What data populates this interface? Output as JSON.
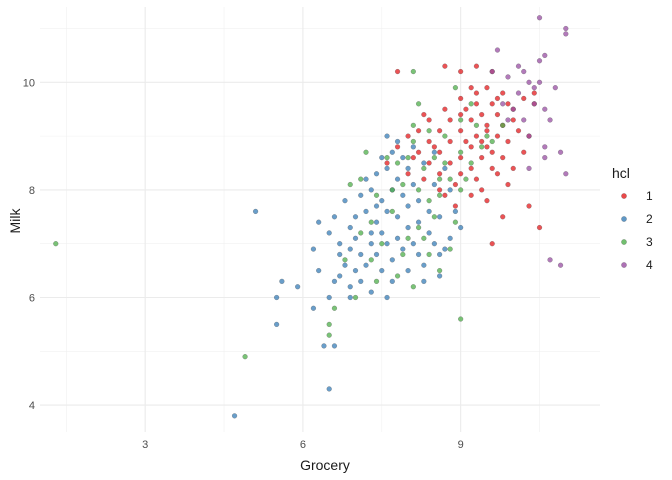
{
  "chart_data": {
    "type": "scatter",
    "title": "",
    "xlabel": "Grocery",
    "ylabel": "Milk",
    "xlim": [
      1.0,
      11.65
    ],
    "ylim": [
      3.5,
      11.4
    ],
    "x_ticks": [
      "3",
      "6",
      "9"
    ],
    "y_ticks": [
      "4",
      "6",
      "8",
      "10"
    ],
    "grid": true,
    "legend": {
      "title": "hcl",
      "position": "right"
    },
    "series": [
      {
        "name": "1",
        "color": "#E41A1C",
        "points": [
          [
            7.8,
            10.2
          ],
          [
            8.7,
            10.3
          ],
          [
            9.0,
            10.2
          ],
          [
            9.3,
            10.3
          ],
          [
            9.6,
            10.2
          ],
          [
            9.2,
            9.9
          ],
          [
            9.5,
            9.9
          ],
          [
            9.8,
            9.8
          ],
          [
            9.0,
            9.7
          ],
          [
            9.3,
            9.6
          ],
          [
            9.6,
            9.6
          ],
          [
            9.9,
            9.6
          ],
          [
            10.2,
            9.7
          ],
          [
            10.4,
            9.6
          ],
          [
            8.7,
            9.5
          ],
          [
            9.1,
            9.5
          ],
          [
            9.4,
            9.4
          ],
          [
            9.7,
            9.4
          ],
          [
            10.0,
            9.5
          ],
          [
            8.4,
            9.3
          ],
          [
            8.8,
            9.3
          ],
          [
            9.2,
            9.3
          ],
          [
            9.5,
            9.2
          ],
          [
            9.8,
            9.2
          ],
          [
            8.2,
            9.1
          ],
          [
            8.6,
            9.1
          ],
          [
            9.0,
            9.1
          ],
          [
            9.3,
            9.0
          ],
          [
            9.7,
            9.0
          ],
          [
            10.1,
            9.1
          ],
          [
            8.0,
            9.0
          ],
          [
            8.4,
            8.9
          ],
          [
            8.8,
            8.9
          ],
          [
            9.2,
            8.8
          ],
          [
            9.5,
            8.8
          ],
          [
            9.9,
            8.9
          ],
          [
            7.8,
            8.8
          ],
          [
            8.2,
            8.7
          ],
          [
            8.6,
            8.7
          ],
          [
            9.0,
            8.6
          ],
          [
            9.4,
            8.6
          ],
          [
            9.8,
            8.6
          ],
          [
            10.2,
            8.7
          ],
          [
            8.4,
            8.5
          ],
          [
            8.8,
            8.5
          ],
          [
            9.2,
            8.4
          ],
          [
            9.6,
            8.4
          ],
          [
            10.0,
            8.4
          ],
          [
            8.6,
            8.3
          ],
          [
            9.0,
            8.3
          ],
          [
            9.3,
            8.2
          ],
          [
            9.7,
            8.3
          ],
          [
            8.9,
            8.1
          ],
          [
            9.4,
            8.0
          ],
          [
            8.7,
            7.9
          ],
          [
            9.2,
            7.9
          ],
          [
            9.5,
            7.8
          ],
          [
            8.9,
            7.7
          ],
          [
            9.8,
            7.5
          ],
          [
            10.3,
            7.7
          ],
          [
            10.5,
            7.3
          ],
          [
            9.6,
            7.0
          ],
          [
            8.1,
            8.6
          ],
          [
            8.5,
            8.8
          ],
          [
            9.1,
            8.9
          ],
          [
            9.5,
            9.1
          ],
          [
            10.0,
            9.3
          ],
          [
            10.4,
            9.8
          ],
          [
            8.3,
            8.2
          ],
          [
            9.9,
            8.1
          ],
          [
            7.6,
            8.5
          ],
          [
            8.0,
            8.3
          ],
          [
            9.3,
            9.8
          ],
          [
            9.6,
            8.7
          ],
          [
            10.3,
            9.0
          ],
          [
            8.6,
            8.0
          ],
          [
            9.0,
            9.4
          ],
          [
            9.7,
            9.7
          ],
          [
            8.3,
            9.4
          ],
          [
            9.4,
            8.9
          ]
        ]
      },
      {
        "name": "2",
        "color": "#377EB8",
        "points": [
          [
            4.7,
            3.8
          ],
          [
            6.5,
            4.3
          ],
          [
            5.5,
            5.5
          ],
          [
            6.4,
            5.1
          ],
          [
            6.6,
            5.1
          ],
          [
            5.5,
            6.0
          ],
          [
            5.6,
            6.3
          ],
          [
            5.9,
            6.2
          ],
          [
            6.2,
            5.8
          ],
          [
            6.3,
            6.5
          ],
          [
            6.5,
            6.0
          ],
          [
            6.6,
            6.3
          ],
          [
            6.7,
            6.4
          ],
          [
            6.8,
            6.6
          ],
          [
            6.9,
            6.2
          ],
          [
            7.0,
            6.5
          ],
          [
            6.7,
            6.8
          ],
          [
            6.9,
            6.9
          ],
          [
            7.1,
            6.8
          ],
          [
            7.2,
            6.6
          ],
          [
            7.3,
            7.0
          ],
          [
            7.4,
            6.8
          ],
          [
            7.5,
            7.2
          ],
          [
            7.6,
            7.0
          ],
          [
            7.7,
            6.7
          ],
          [
            7.8,
            7.1
          ],
          [
            7.9,
            6.9
          ],
          [
            8.0,
            7.3
          ],
          [
            8.1,
            7.0
          ],
          [
            8.2,
            6.8
          ],
          [
            8.3,
            6.6
          ],
          [
            8.4,
            7.2
          ],
          [
            8.5,
            7.0
          ],
          [
            8.6,
            6.8
          ],
          [
            8.7,
            6.9
          ],
          [
            8.8,
            7.1
          ],
          [
            6.9,
            7.3
          ],
          [
            7.0,
            7.5
          ],
          [
            7.2,
            7.6
          ],
          [
            7.4,
            7.4
          ],
          [
            7.6,
            7.6
          ],
          [
            7.8,
            7.5
          ],
          [
            8.0,
            7.7
          ],
          [
            8.2,
            7.4
          ],
          [
            8.4,
            7.6
          ],
          [
            6.8,
            7.8
          ],
          [
            7.1,
            7.9
          ],
          [
            7.3,
            8.0
          ],
          [
            7.5,
            7.8
          ],
          [
            7.7,
            8.0
          ],
          [
            7.9,
            7.9
          ],
          [
            8.1,
            8.1
          ],
          [
            7.2,
            8.2
          ],
          [
            7.4,
            8.3
          ],
          [
            7.6,
            8.4
          ],
          [
            7.8,
            8.2
          ],
          [
            8.0,
            8.4
          ],
          [
            7.5,
            8.6
          ],
          [
            7.7,
            8.7
          ],
          [
            7.9,
            8.6
          ],
          [
            8.1,
            8.8
          ],
          [
            7.6,
            9.0
          ],
          [
            7.8,
            8.9
          ],
          [
            8.3,
            8.5
          ],
          [
            8.5,
            8.7
          ],
          [
            8.7,
            8.4
          ],
          [
            5.1,
            7.6
          ],
          [
            6.2,
            6.9
          ],
          [
            6.5,
            7.2
          ],
          [
            6.7,
            7.0
          ],
          [
            7.0,
            7.1
          ],
          [
            7.3,
            7.2
          ],
          [
            7.5,
            6.5
          ],
          [
            7.7,
            6.3
          ],
          [
            8.0,
            6.5
          ],
          [
            8.3,
            6.3
          ],
          [
            8.6,
            6.4
          ],
          [
            6.9,
            6.0
          ],
          [
            7.1,
            6.3
          ],
          [
            7.3,
            6.1
          ],
          [
            7.6,
            6.0
          ],
          [
            8.2,
            7.8
          ],
          [
            8.6,
            7.5
          ],
          [
            8.9,
            7.6
          ],
          [
            9.0,
            7.3
          ],
          [
            6.6,
            7.5
          ],
          [
            6.3,
            7.4
          ],
          [
            7.4,
            7.7
          ],
          [
            8.5,
            8.1
          ],
          [
            8.8,
            8.0
          ]
        ]
      },
      {
        "name": "3",
        "color": "#4DAF4A",
        "points": [
          [
            1.3,
            7.0
          ],
          [
            4.9,
            4.9
          ],
          [
            6.5,
            5.5
          ],
          [
            6.6,
            5.8
          ],
          [
            7.0,
            6.0
          ],
          [
            7.4,
            6.3
          ],
          [
            7.8,
            6.4
          ],
          [
            8.1,
            6.2
          ],
          [
            8.4,
            6.8
          ],
          [
            8.6,
            6.5
          ],
          [
            8.8,
            6.9
          ],
          [
            9.0,
            5.6
          ],
          [
            6.9,
            8.1
          ],
          [
            7.1,
            8.2
          ],
          [
            7.4,
            7.9
          ],
          [
            7.7,
            8.0
          ],
          [
            7.9,
            8.1
          ],
          [
            8.2,
            8.0
          ],
          [
            8.4,
            7.8
          ],
          [
            8.6,
            7.9
          ],
          [
            8.8,
            8.2
          ],
          [
            9.0,
            8.0
          ],
          [
            7.6,
            8.6
          ],
          [
            7.8,
            8.5
          ],
          [
            8.0,
            8.6
          ],
          [
            8.3,
            8.4
          ],
          [
            8.5,
            8.6
          ],
          [
            8.7,
            8.5
          ],
          [
            9.0,
            8.7
          ],
          [
            9.2,
            8.5
          ],
          [
            9.4,
            8.8
          ],
          [
            9.6,
            8.9
          ],
          [
            8.1,
            9.2
          ],
          [
            8.4,
            9.1
          ],
          [
            8.7,
            9.0
          ],
          [
            9.0,
            9.3
          ],
          [
            9.3,
            9.2
          ],
          [
            8.2,
            9.6
          ],
          [
            8.9,
            9.9
          ],
          [
            9.8,
            9.2
          ],
          [
            8.1,
            10.2
          ],
          [
            7.3,
            7.4
          ],
          [
            7.7,
            7.6
          ],
          [
            8.2,
            7.3
          ],
          [
            8.5,
            7.5
          ],
          [
            7.1,
            7.2
          ],
          [
            7.5,
            7.0
          ],
          [
            8.0,
            7.1
          ],
          [
            8.3,
            7.1
          ],
          [
            8.9,
            7.4
          ],
          [
            7.3,
            6.7
          ],
          [
            7.9,
            6.8
          ],
          [
            6.8,
            6.7
          ],
          [
            6.5,
            5.3
          ],
          [
            7.2,
            8.7
          ],
          [
            8.1,
            8.9
          ],
          [
            8.6,
            8.2
          ],
          [
            9.1,
            8.2
          ],
          [
            9.5,
            9.0
          ],
          [
            9.2,
            9.6
          ]
        ]
      },
      {
        "name": "4",
        "color": "#984EA3",
        "points": [
          [
            10.5,
            11.2
          ],
          [
            11.0,
            11.0
          ],
          [
            11.0,
            10.9
          ],
          [
            10.6,
            10.5
          ],
          [
            10.1,
            10.3
          ],
          [
            10.5,
            10.4
          ],
          [
            9.7,
            10.6
          ],
          [
            10.3,
            10.0
          ],
          [
            10.5,
            10.0
          ],
          [
            10.8,
            9.9
          ],
          [
            9.9,
            10.1
          ],
          [
            10.1,
            9.8
          ],
          [
            10.4,
            9.6
          ],
          [
            10.6,
            9.5
          ],
          [
            9.8,
            9.6
          ],
          [
            10.0,
            9.5
          ],
          [
            10.2,
            9.3
          ],
          [
            10.7,
            9.3
          ],
          [
            9.9,
            9.3
          ],
          [
            10.3,
            9.0
          ],
          [
            10.6,
            8.6
          ],
          [
            10.9,
            8.7
          ],
          [
            11.0,
            8.3
          ],
          [
            10.3,
            8.4
          ],
          [
            10.7,
            6.7
          ],
          [
            10.9,
            6.6
          ],
          [
            9.6,
            10.2
          ],
          [
            10.2,
            10.2
          ],
          [
            10.4,
            9.9
          ],
          [
            10.6,
            8.8
          ]
        ]
      }
    ]
  }
}
